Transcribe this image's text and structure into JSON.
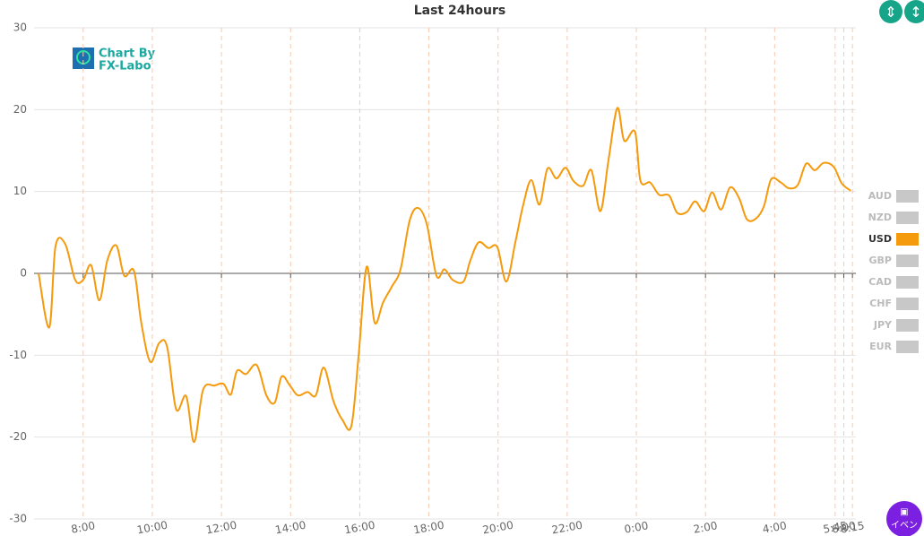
{
  "chart_data": {
    "type": "line",
    "title": "Last 24hours",
    "watermark": [
      "Chart By",
      "FX-Labo"
    ],
    "x": [
      6.71,
      7.02,
      7.2,
      7.48,
      7.77,
      8.0,
      8.23,
      8.47,
      8.7,
      8.96,
      9.19,
      9.47,
      9.68,
      9.94,
      10.2,
      10.43,
      10.69,
      10.98,
      11.21,
      11.47,
      11.8,
      12.06,
      12.27,
      12.45,
      12.71,
      13.02,
      13.3,
      13.54,
      13.74,
      13.98,
      14.21,
      14.49,
      14.73,
      14.96,
      15.24,
      15.5,
      15.76,
      15.97,
      16.2,
      16.43,
      16.67,
      16.93,
      17.18,
      17.44,
      17.68,
      17.94,
      18.22,
      18.45,
      18.69,
      19.0,
      19.2,
      19.44,
      19.72,
      19.98,
      20.24,
      20.5,
      20.73,
      20.96,
      21.2,
      21.43,
      21.69,
      21.95,
      22.18,
      22.46,
      22.7,
      22.96,
      23.19,
      23.45,
      23.65,
      23.96,
      24.12,
      24.4,
      24.66,
      24.95,
      25.18,
      25.46,
      25.7,
      25.96,
      26.19,
      26.45,
      26.71,
      26.97,
      27.2,
      27.46,
      27.69,
      27.9,
      28.18,
      28.41,
      28.67,
      28.91,
      29.16,
      29.42,
      29.71,
      29.94,
      30.2
    ],
    "series": [
      {
        "name": "USD",
        "color": "#f59a0c",
        "values": [
          0,
          -6.6,
          3.3,
          3.6,
          -0.8,
          -0.8,
          1,
          -3.3,
          1.6,
          3.4,
          -0.3,
          0.3,
          -6,
          -10.8,
          -8.5,
          -9,
          -16.6,
          -15,
          -20.6,
          -14.2,
          -13.7,
          -13.5,
          -14.8,
          -11.9,
          -12.3,
          -11.2,
          -14.9,
          -15.8,
          -12.6,
          -13.7,
          -14.9,
          -14.5,
          -14.9,
          -11.5,
          -15.6,
          -17.9,
          -18.6,
          -9.9,
          0.8,
          -6,
          -3.6,
          -1.6,
          0.5,
          6.4,
          8,
          6,
          -0.3,
          0.5,
          -0.8,
          -1,
          1.6,
          3.8,
          3.1,
          3.2,
          -1,
          3.8,
          8.4,
          11.4,
          8.4,
          12.8,
          11.6,
          12.9,
          11.3,
          10.7,
          12.6,
          7.6,
          13.7,
          20.2,
          16.2,
          17.3,
          11.3,
          11.1,
          9.6,
          9.5,
          7.4,
          7.5,
          8.8,
          7.6,
          9.9,
          7.8,
          10.5,
          9.2,
          6.6,
          6.7,
          8.2,
          11.5,
          11.1,
          10.4,
          10.8,
          13.4,
          12.6,
          13.5,
          13,
          11,
          10.1
        ]
      }
    ],
    "legend": [
      "AUD",
      "NZD",
      "USD",
      "GBP",
      "CAD",
      "CHF",
      "JPY",
      "EUR"
    ],
    "inactive_color": "#c8c8c8",
    "xlim": [
      6.58,
      30.35
    ],
    "xticks": [
      {
        "value": 8,
        "label": "8:00"
      },
      {
        "value": 10,
        "label": "10:00"
      },
      {
        "value": 12,
        "label": "12:00"
      },
      {
        "value": 14,
        "label": "14:00"
      },
      {
        "value": 16,
        "label": "16:00"
      },
      {
        "value": 18,
        "label": "18:00"
      },
      {
        "value": 20,
        "label": "20:00"
      },
      {
        "value": 22,
        "label": "22:00"
      },
      {
        "value": 24,
        "label": "0:00"
      },
      {
        "value": 26,
        "label": "2:00"
      },
      {
        "value": 28,
        "label": "4:00"
      },
      {
        "value": 29.75,
        "label": "5:45"
      },
      {
        "value": 30,
        "label": "6:00"
      },
      {
        "value": 30.25,
        "label": "6:15"
      }
    ],
    "ylim": [
      -30,
      30
    ],
    "yticks": [
      -30,
      -20,
      -10,
      0,
      10,
      20,
      30
    ],
    "grid": true,
    "event_button": "イベン"
  }
}
